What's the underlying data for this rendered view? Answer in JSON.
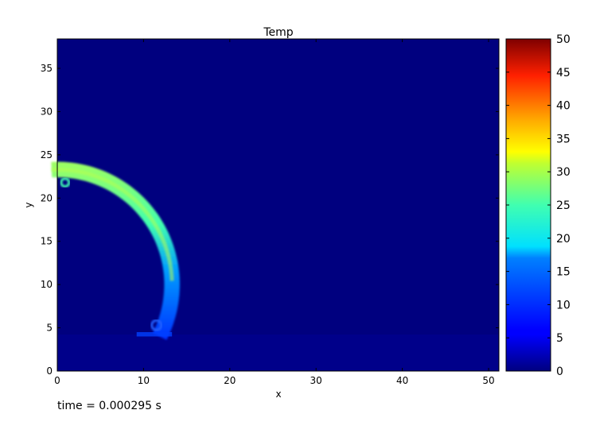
{
  "chart_data": {
    "type": "heatmap",
    "title": "Temp",
    "xlabel": "x",
    "ylabel": "y",
    "xlim": [
      0,
      51.2
    ],
    "ylim": [
      0,
      38.4
    ],
    "xticks": [
      "0",
      "10",
      "20",
      "30",
      "40",
      "50"
    ],
    "yticks": [
      "0",
      "5",
      "10",
      "15",
      "20",
      "25",
      "30",
      "35"
    ],
    "colormap": "jet",
    "colorbar": {
      "range": [
        0,
        50
      ],
      "ticks": [
        "0",
        "5",
        "10",
        "15",
        "20",
        "25",
        "30",
        "35",
        "40",
        "45",
        "50"
      ]
    },
    "background_value": 0,
    "front": {
      "description_values": "arc-shaped high-temperature front from about (0.5, 23) curving to about (13, 4)",
      "center_x": 0,
      "center_y": 10,
      "inner_radius": 12.4,
      "outer_radius": 14.2,
      "temp_at_top": 27,
      "temp_at_bottom": 7
    },
    "grid": false
  },
  "annotation": {
    "time_label": "time = 0.000295 s"
  },
  "colors": {
    "background": "#00007f",
    "axis": "#000000"
  }
}
